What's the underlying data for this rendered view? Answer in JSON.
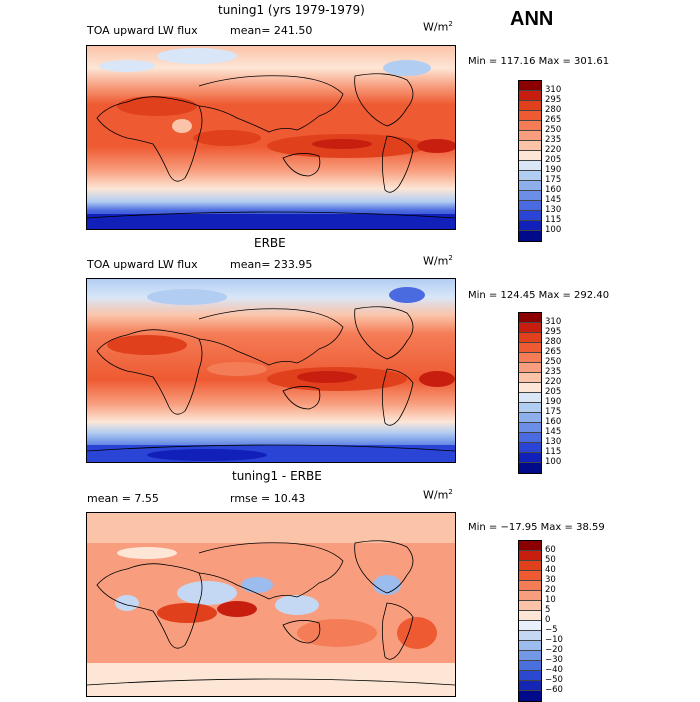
{
  "season": "ANN",
  "units_base": "W/m",
  "units_exp": "2",
  "panels": [
    {
      "title": "tuning1 (yrs 1979-1979)",
      "left_label": "TOA upward LW flux",
      "stat_label": "mean= 241.50",
      "minmax": "Min = 117.16  Max = 301.61",
      "levels": [
        "310",
        "295",
        "280",
        "265",
        "250",
        "235",
        "220",
        "205",
        "190",
        "175",
        "160",
        "145",
        "130",
        "115",
        "100"
      ],
      "colors": [
        "#8b0000",
        "#c81e10",
        "#e0401c",
        "#ee5a32",
        "#f47c56",
        "#f89e7e",
        "#fbc3a8",
        "#fde6d6",
        "#d8e6f8",
        "#b2cdf2",
        "#8db0ec",
        "#6b8ee6",
        "#4a6ae0",
        "#2a44d6",
        "#1020b8",
        "#000a8a"
      ],
      "map_style": "model"
    },
    {
      "title": "ERBE",
      "left_label": "TOA upward LW flux",
      "stat_label": "mean= 233.95",
      "minmax": "Min = 124.45  Max = 292.40",
      "levels": [
        "310",
        "295",
        "280",
        "265",
        "250",
        "235",
        "220",
        "205",
        "190",
        "175",
        "160",
        "145",
        "130",
        "115",
        "100"
      ],
      "colors": [
        "#8b0000",
        "#c81e10",
        "#e0401c",
        "#ee5a32",
        "#f47c56",
        "#f89e7e",
        "#fbc3a8",
        "#fde6d6",
        "#d8e6f8",
        "#b2cdf2",
        "#8db0ec",
        "#6b8ee6",
        "#4a6ae0",
        "#2a44d6",
        "#1020b8",
        "#000a8a"
      ],
      "map_style": "obs"
    },
    {
      "title": "tuning1 - ERBE",
      "left_label": "mean =    7.55",
      "stat_label": "rmse =   10.43",
      "minmax": "Min = −17.95  Max =  38.59",
      "levels": [
        "60",
        "50",
        "40",
        "30",
        "20",
        "10",
        "5",
        "0",
        "−5",
        "−10",
        "−20",
        "−30",
        "−40",
        "−50",
        "−60"
      ],
      "colors": [
        "#8b0000",
        "#c81e10",
        "#e0401c",
        "#ee5a32",
        "#f47c56",
        "#f89e7e",
        "#fbc3a8",
        "#fde6d6",
        "#e8f0fb",
        "#c4d8f4",
        "#9dbcee",
        "#7399e6",
        "#4a70de",
        "#2a48d0",
        "#1426b4",
        "#000a8a"
      ],
      "map_style": "diff"
    }
  ]
}
